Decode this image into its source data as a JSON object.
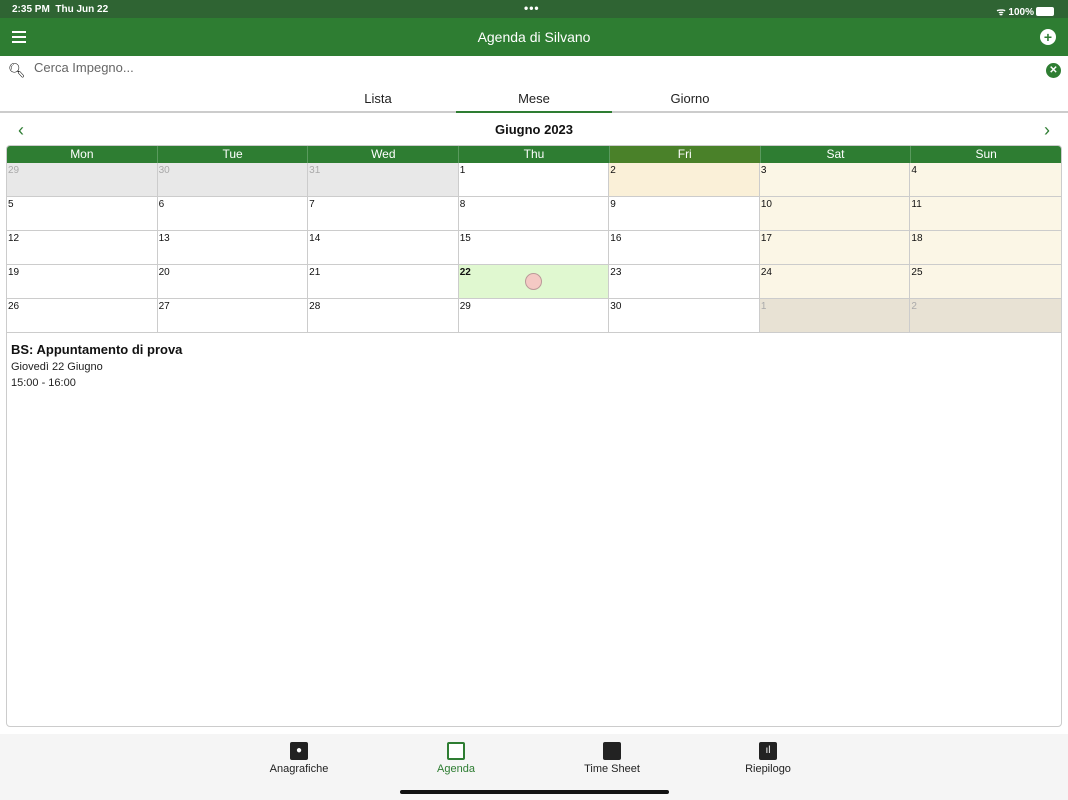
{
  "status": {
    "time": "2:35 PM",
    "date": "Thu Jun 22",
    "battery": "100%"
  },
  "header": {
    "title": "Agenda di Silvano"
  },
  "search": {
    "placeholder": "Cerca Impegno..."
  },
  "tabs": [
    {
      "label": "Lista"
    },
    {
      "label": "Mese",
      "active": true
    },
    {
      "label": "Giorno"
    }
  ],
  "month": {
    "title": "Giugno 2023"
  },
  "weekdays": [
    "Mon",
    "Tue",
    "Wed",
    "Thu",
    "Fri",
    "Sat",
    "Sun"
  ],
  "colors": {
    "primary": "#2e7d32",
    "today": "#e0f8d0",
    "weekend": "#fbf6e6",
    "other_month": "#e8e8e8"
  },
  "days": [
    {
      "n": "29",
      "other": true
    },
    {
      "n": "30",
      "other": true
    },
    {
      "n": "31",
      "other": true
    },
    {
      "n": "1"
    },
    {
      "n": "2",
      "bg": "#faf0d8"
    },
    {
      "n": "3",
      "we": true
    },
    {
      "n": "4",
      "we": true
    },
    {
      "n": "5"
    },
    {
      "n": "6"
    },
    {
      "n": "7"
    },
    {
      "n": "8"
    },
    {
      "n": "9"
    },
    {
      "n": "10",
      "we": true
    },
    {
      "n": "11",
      "we": true
    },
    {
      "n": "12"
    },
    {
      "n": "13"
    },
    {
      "n": "14"
    },
    {
      "n": "15"
    },
    {
      "n": "16"
    },
    {
      "n": "17",
      "we": true
    },
    {
      "n": "18",
      "we": true
    },
    {
      "n": "19"
    },
    {
      "n": "20"
    },
    {
      "n": "21"
    },
    {
      "n": "22",
      "today": true,
      "event": true
    },
    {
      "n": "23"
    },
    {
      "n": "24",
      "we": true
    },
    {
      "n": "25",
      "we": true
    },
    {
      "n": "26"
    },
    {
      "n": "27"
    },
    {
      "n": "28"
    },
    {
      "n": "29"
    },
    {
      "n": "30"
    },
    {
      "n": "1",
      "other": true,
      "we": true
    },
    {
      "n": "2",
      "other": true,
      "we": true
    }
  ],
  "event": {
    "title": "BS: Appuntamento di prova",
    "date": "Giovedì 22 Giugno",
    "time": "15:00 - 16:00"
  },
  "bottom_tabs": [
    {
      "label": "Anagrafiche",
      "icon": "person-icon"
    },
    {
      "label": "Agenda",
      "icon": "calendar-icon",
      "active": true
    },
    {
      "label": "Time Sheet",
      "icon": "briefcase-icon"
    },
    {
      "label": "Riepilogo",
      "icon": "chart-icon"
    }
  ]
}
